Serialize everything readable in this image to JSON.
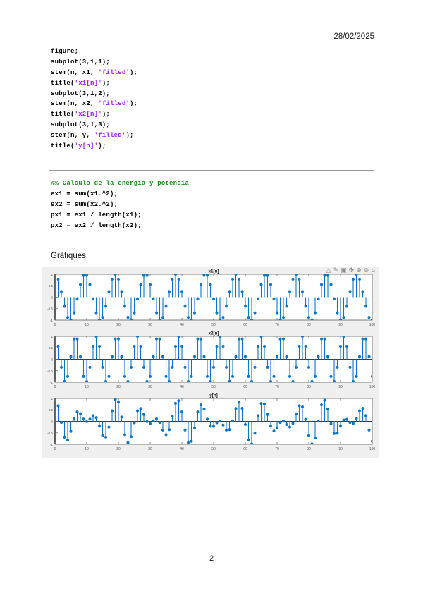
{
  "page": {
    "date": "28/02/2025",
    "graphics_label": "Gràfiques:",
    "page_number": "2"
  },
  "colors": {
    "string": "#a020f0",
    "comment": "#228b22",
    "code_text": "#000000",
    "stem_blue": "#0b76c4",
    "figure_bg": "#efefef",
    "axis_line": "#6e6e6e",
    "tick_label": "#565656"
  },
  "code_block_1": {
    "lines": [
      [
        {
          "t": "figure;",
          "c": "k"
        }
      ],
      [
        {
          "t": "subplot(3,1,1);",
          "c": "k"
        }
      ],
      [
        {
          "t": "stem(n, x1, ",
          "c": "k"
        },
        {
          "t": "'filled'",
          "c": "s"
        },
        {
          "t": ");",
          "c": "k"
        }
      ],
      [
        {
          "t": "title(",
          "c": "k"
        },
        {
          "t": "'x1[n]'",
          "c": "s"
        },
        {
          "t": ");",
          "c": "k"
        }
      ],
      [
        {
          "t": "subplot(3,1,2);",
          "c": "k"
        }
      ],
      [
        {
          "t": "stem(n, x2, ",
          "c": "k"
        },
        {
          "t": "'filled'",
          "c": "s"
        },
        {
          "t": ");",
          "c": "k"
        }
      ],
      [
        {
          "t": "title(",
          "c": "k"
        },
        {
          "t": "'x2[n]'",
          "c": "s"
        },
        {
          "t": ");",
          "c": "k"
        }
      ],
      [
        {
          "t": "subplot(3,1,3);",
          "c": "k"
        }
      ],
      [
        {
          "t": "stem(n, y, ",
          "c": "k"
        },
        {
          "t": "'filled'",
          "c": "s"
        },
        {
          "t": ");",
          "c": "k"
        }
      ],
      [
        {
          "t": "title(",
          "c": "k"
        },
        {
          "t": "'y[n]'",
          "c": "s"
        },
        {
          "t": ");",
          "c": "k"
        }
      ]
    ]
  },
  "code_block_2": {
    "lines": [
      [
        {
          "t": "%% Calculo de la energia y potencia",
          "c": "c"
        }
      ],
      [
        {
          "t": "ex1 = sum(x1.^2);",
          "c": "k"
        }
      ],
      [
        {
          "t": "ex2 = sum(x2.^2);",
          "c": "k"
        }
      ],
      [
        {
          "t": "px1 = ex1 / length(x1);",
          "c": "k"
        }
      ],
      [
        {
          "t": "px2 = ex2 / length(x2);",
          "c": "k"
        }
      ]
    ]
  },
  "figure": {
    "toolbar": {
      "icons": [
        {
          "name": "export",
          "glyph": "△"
        },
        {
          "name": "brush",
          "glyph": "✎"
        },
        {
          "name": "datatips",
          "glyph": "▣"
        },
        {
          "name": "pan",
          "glyph": "✥"
        },
        {
          "name": "zoom-in",
          "glyph": "⊕"
        },
        {
          "name": "zoom-out",
          "glyph": "⊖"
        },
        {
          "name": "restore-view",
          "glyph": "⌂"
        }
      ]
    }
  },
  "chart_data": [
    {
      "type": "stem",
      "title": "x1[n]",
      "x_start": 0,
      "xticks": [
        0,
        10,
        20,
        30,
        40,
        50,
        60,
        70,
        80,
        90,
        100
      ],
      "yticks": [
        1,
        0.5,
        0,
        -0.5,
        -1
      ],
      "ylim": [
        -1,
        1
      ],
      "baseline": false,
      "values": [
        1,
        0.79,
        0.25,
        -0.4,
        -0.88,
        -0.99,
        -0.68,
        -0.08,
        0.55,
        0.95,
        0.95,
        0.55,
        -0.08,
        -0.68,
        -0.99,
        -0.88,
        -0.4,
        0.25,
        0.79,
        1,
        0.79,
        0.25,
        -0.4,
        -0.88,
        -0.99,
        -0.68,
        -0.08,
        0.55,
        0.95,
        0.95,
        0.55,
        -0.08,
        -0.68,
        -0.99,
        -0.88,
        -0.4,
        0.25,
        0.79,
        1,
        0.79,
        0.25,
        -0.4,
        -0.88,
        -0.99,
        -0.68,
        -0.08,
        0.55,
        0.95,
        0.95,
        0.55,
        -0.08,
        -0.68,
        -0.99,
        -0.88,
        -0.4,
        0.25,
        0.79,
        1,
        0.79,
        0.25,
        -0.4,
        -0.88,
        -0.99,
        -0.68,
        -0.08,
        0.55,
        0.95,
        0.95,
        0.55,
        -0.08,
        -0.68,
        -0.99,
        -0.88,
        -0.4,
        0.25,
        0.79,
        1,
        0.79,
        0.25,
        -0.4,
        -0.88,
        -0.99,
        -0.68,
        -0.08,
        0.55,
        0.95,
        0.95,
        0.55,
        -0.08,
        -0.68,
        -0.99,
        -0.88,
        -0.4,
        0.25,
        0.79,
        1,
        0.79,
        0.25,
        -0.4,
        -0.88,
        -0.99
      ]
    },
    {
      "type": "stem",
      "title": "x2[n]",
      "x_start": 0,
      "xticks": [
        0,
        10,
        20,
        30,
        40,
        50,
        60,
        70,
        80,
        90,
        100
      ],
      "yticks": [
        1,
        0.5,
        0,
        -0.5,
        -1
      ],
      "ylim": [
        -1,
        1
      ],
      "baseline": true,
      "values": [
        1,
        0.57,
        -0.35,
        -0.97,
        -0.75,
        0.12,
        0.89,
        0.89,
        0.12,
        -0.75,
        -0.97,
        -0.35,
        0.57,
        1,
        0.57,
        -0.35,
        -0.97,
        -0.75,
        0.12,
        0.89,
        0.89,
        0.12,
        -0.75,
        -0.97,
        -0.35,
        0.57,
        1,
        0.57,
        -0.35,
        -0.97,
        -0.75,
        0.12,
        0.89,
        0.89,
        0.12,
        -0.75,
        -0.97,
        -0.35,
        0.57,
        1,
        0.57,
        -0.35,
        -0.97,
        -0.75,
        0.12,
        0.89,
        0.89,
        0.12,
        -0.75,
        -0.97,
        -0.35,
        0.57,
        1,
        0.57,
        -0.35,
        -0.97,
        -0.75,
        0.12,
        0.89,
        0.89,
        0.12,
        -0.75,
        -0.97,
        -0.35,
        0.57,
        1,
        0.57,
        -0.35,
        -0.97,
        -0.75,
        0.12,
        0.89,
        0.89,
        0.12,
        -0.75,
        -0.97,
        -0.35,
        0.57,
        1,
        0.57,
        -0.35,
        -0.97,
        -0.75,
        0.12,
        0.89,
        0.89,
        0.12,
        -0.75,
        -0.97,
        -0.35,
        0.57,
        1,
        0.57,
        -0.35,
        -0.97,
        -0.75,
        0.12,
        0.89,
        0.89,
        0.12,
        -0.75
      ]
    },
    {
      "type": "stem",
      "title": "y[n]",
      "x_start": 0,
      "xticks": [
        0,
        10,
        20,
        30,
        40,
        50,
        60,
        70,
        80,
        90,
        100
      ],
      "yticks": [
        1,
        0.5,
        0,
        -0.5,
        -1
      ],
      "ylim": [
        -1,
        1
      ],
      "baseline": true,
      "values": [
        1,
        0.68,
        -0.05,
        -0.69,
        -0.82,
        -0.44,
        0.11,
        0.41,
        0.34,
        0.1,
        -0.01,
        0.1,
        0.25,
        0.16,
        -0.21,
        -0.62,
        -0.69,
        -0.25,
        0.46,
        0.95,
        0.84,
        0.19,
        -0.58,
        -0.93,
        -0.67,
        -0.06,
        0.46,
        0.56,
        0.3,
        -0.01,
        -0.1,
        0.02,
        0.11,
        -0.05,
        -0.38,
        -0.58,
        -0.36,
        0.22,
        0.79,
        0.9,
        0.41,
        -0.38,
        -0.93,
        -0.87,
        -0.28,
        0.41,
        0.72,
        0.54,
        0.1,
        -0.21,
        -0.22,
        -0.06,
        0.01,
        -0.16,
        -0.38,
        -0.36,
        0.02,
        0.56,
        0.84,
        0.57,
        -0.14,
        -0.82,
        -0.98,
        -0.52,
        0.25,
        0.78,
        0.76,
        0.3,
        -0.21,
        -0.42,
        -0.28,
        -0.05,
        0.01,
        -0.14,
        -0.25,
        -0.09,
        0.33,
        0.68,
        0.63,
        0.09,
        -0.62,
        -0.98,
        -0.72,
        0.02,
        0.72,
        0.92,
        0.54,
        -0.1,
        -0.53,
        -0.52,
        -0.21,
        0.06,
        0.09,
        -0.05,
        -0.09,
        0.13,
        0.46,
        0.57,
        0.25,
        -0.38,
        -0.87
      ]
    }
  ]
}
